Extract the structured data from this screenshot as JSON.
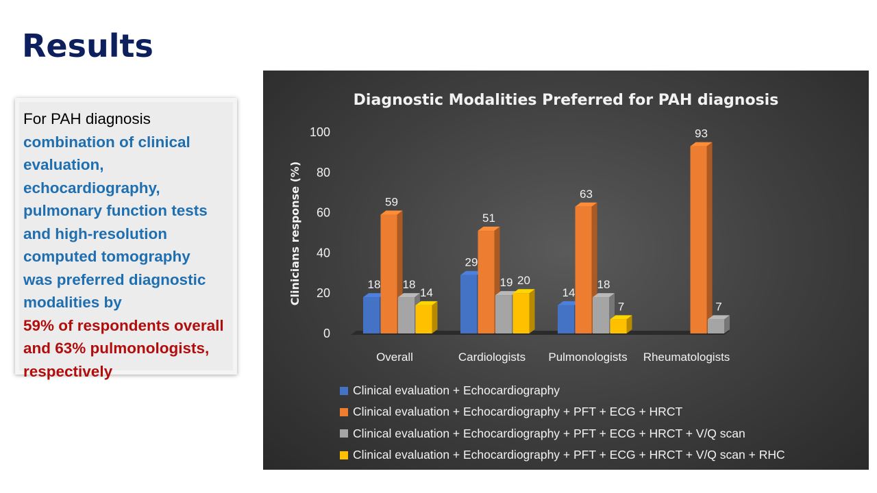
{
  "slide": {
    "title": "Results"
  },
  "summary": {
    "line1": "For PAH diagnosis",
    "blue_lines": [
      "combination of clinical",
      "evaluation,",
      "echocardiography,",
      "pulmonary function tests",
      "and high-resolution",
      "computed tomography",
      "was preferred diagnostic",
      "modalities by"
    ],
    "red_lines": [
      "59% of respondents overall",
      "and  63% pulmonologists,",
      "respectively"
    ]
  },
  "colors": {
    "blue_text": "#1f6fb0",
    "red_text": "#b10d0d",
    "title": "#0d1f5c"
  },
  "chart_data": {
    "type": "bar",
    "title": "Diagnostic  Modalities  Preferred  for  PAH  diagnosis",
    "xlabel": "",
    "ylabel": "Clinicians  response  (%)",
    "ylim": [
      0,
      100
    ],
    "yticks": [
      0,
      20,
      40,
      60,
      80,
      100
    ],
    "grid": false,
    "legend_position": "bottom",
    "categories": [
      "Overall",
      "Cardiologists",
      "Pulmonologists",
      "Rheumatologists"
    ],
    "series": [
      {
        "name": "Clinical evaluation + Echocardiography",
        "color": "#4472c4",
        "values": [
          18,
          29,
          14,
          null
        ]
      },
      {
        "name": "Clinical evaluation + Echocardiography + PFT + ECG + HRCT",
        "color": "#ed7d31",
        "values": [
          59,
          51,
          63,
          93
        ]
      },
      {
        "name": "Clinical evaluation + Echocardiography + PFT + ECG + HRCT + V/Q scan",
        "color": "#a5a5a5",
        "values": [
          18,
          19,
          18,
          7
        ]
      },
      {
        "name": "Clinical evaluation + Echocardiography + PFT + ECG + HRCT + V/Q scan + RHC",
        "color": "#ffc000",
        "values": [
          14,
          20,
          7,
          null
        ]
      }
    ]
  }
}
